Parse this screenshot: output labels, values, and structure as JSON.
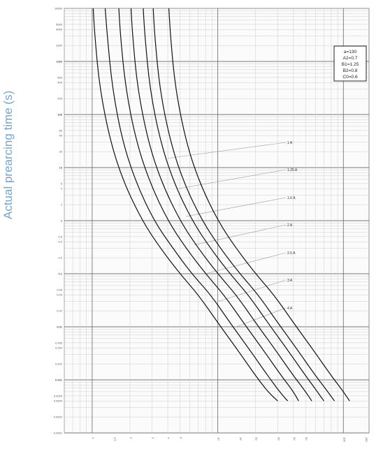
{
  "chart_data": {
    "type": "line",
    "ylabel": "Actual prearcing time (s)",
    "xlabel": "",
    "yscale": "log",
    "xscale": "log",
    "ylim": [
      0.0001,
      10000
    ],
    "xlim": [
      0.6,
      160
    ],
    "grid": true,
    "y_ticks": [
      "10000",
      "5000",
      "4000",
      "2000",
      "1000",
      "1000",
      "500",
      "400",
      "200",
      "100",
      "100",
      "50",
      "40",
      "20",
      "10",
      "10",
      "5",
      "4",
      "2",
      "1",
      "1",
      "0.5",
      "0.4",
      "0.2",
      "0.1",
      "0.1",
      "0.05",
      "0.04",
      "0.02",
      "0.01",
      "0.01",
      "0.005",
      "0.004",
      "0.002",
      "0.001",
      "0.001",
      "0.0005",
      "0.0004",
      "0.0002",
      "0.0001"
    ],
    "x_ticks": [
      "1",
      "1.5",
      "2",
      "3",
      "4",
      "5",
      "10",
      "15",
      "20",
      "30",
      "40",
      "50",
      "100",
      "150"
    ],
    "parameters": [
      "a=130",
      "A2=0.7",
      "B1=1.25",
      "B2=0.8",
      "C0=0.6"
    ],
    "series": [
      {
        "name": "1 A",
        "x": [
          1.02,
          1.05,
          1.15,
          1.4,
          1.8,
          2.5,
          3.5,
          5,
          7,
          10,
          14,
          20,
          25,
          30
        ],
        "y": [
          10000,
          3000,
          300,
          30,
          5,
          1,
          0.3,
          0.1,
          0.04,
          0.012,
          0.004,
          0.0012,
          0.0006,
          0.0004
        ]
      },
      {
        "name": "1.25 A",
        "x": [
          1.27,
          1.32,
          1.45,
          1.75,
          2.25,
          3.1,
          4.4,
          6.2,
          8.8,
          12.5,
          17.5,
          25,
          31,
          36
        ],
        "y": [
          10000,
          3000,
          300,
          30,
          5,
          1,
          0.3,
          0.1,
          0.04,
          0.012,
          0.004,
          0.0012,
          0.0006,
          0.0004
        ]
      },
      {
        "name": "1.6 A",
        "x": [
          1.63,
          1.68,
          1.85,
          2.25,
          2.9,
          4.0,
          5.6,
          8,
          11.2,
          16,
          22.4,
          32,
          40,
          44
        ],
        "y": [
          10000,
          3000,
          300,
          30,
          5,
          1,
          0.3,
          0.1,
          0.04,
          0.012,
          0.004,
          0.0012,
          0.0006,
          0.0004
        ]
      },
      {
        "name": "2 A",
        "x": [
          2.04,
          2.1,
          2.3,
          2.8,
          3.6,
          5,
          7,
          10,
          14,
          20,
          28,
          40,
          50,
          56
        ],
        "y": [
          10000,
          3000,
          300,
          30,
          5,
          1,
          0.3,
          0.1,
          0.04,
          0.012,
          0.004,
          0.0012,
          0.0006,
          0.0004
        ]
      },
      {
        "name": "2.5 A",
        "x": [
          2.55,
          2.63,
          2.88,
          3.5,
          4.5,
          6.25,
          8.75,
          12.5,
          17.5,
          25,
          35,
          50,
          62,
          70
        ],
        "y": [
          10000,
          3000,
          300,
          30,
          5,
          1,
          0.3,
          0.1,
          0.04,
          0.012,
          0.004,
          0.0012,
          0.0006,
          0.0004
        ]
      },
      {
        "name": "3 A",
        "x": [
          3.06,
          3.15,
          3.45,
          4.2,
          5.4,
          7.5,
          10.5,
          15,
          21,
          30,
          42,
          60,
          75,
          85
        ],
        "y": [
          10000,
          3000,
          300,
          30,
          5,
          1,
          0.3,
          0.1,
          0.04,
          0.012,
          0.004,
          0.0012,
          0.0006,
          0.0004
        ]
      },
      {
        "name": "4 A",
        "x": [
          4.08,
          4.2,
          4.6,
          5.6,
          7.2,
          10,
          14,
          20,
          28,
          40,
          56,
          80,
          100,
          112
        ],
        "y": [
          10000,
          3000,
          300,
          30,
          5,
          1,
          0.3,
          0.1,
          0.04,
          0.012,
          0.004,
          0.0012,
          0.0006,
          0.0004
        ]
      }
    ],
    "annotations": [
      {
        "text": "1 A",
        "at": [
          4,
          15
        ]
      },
      {
        "text": "1.25 A",
        "at": [
          4.8,
          4
        ]
      },
      {
        "text": "1.6 A",
        "at": [
          5.6,
          1.2
        ]
      },
      {
        "text": "2 A",
        "at": [
          6.5,
          0.35
        ]
      },
      {
        "text": "2.5 A",
        "at": [
          8,
          0.1
        ]
      },
      {
        "text": "3 A",
        "at": [
          10,
          0.03
        ]
      },
      {
        "text": "4 A",
        "at": [
          14,
          0.01
        ]
      }
    ]
  }
}
